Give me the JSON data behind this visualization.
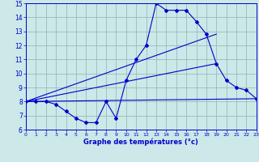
{
  "xlabel": "Graphe des températures (°c)",
  "bg_color": "#cce8e8",
  "line_color": "#0000cc",
  "grid_color": "#99bbbb",
  "xlim": [
    0,
    23
  ],
  "ylim": [
    6,
    15
  ],
  "xticks": [
    0,
    1,
    2,
    3,
    4,
    5,
    6,
    7,
    8,
    9,
    10,
    11,
    12,
    13,
    14,
    15,
    16,
    17,
    18,
    19,
    20,
    21,
    22,
    23
  ],
  "yticks": [
    6,
    7,
    8,
    9,
    10,
    11,
    12,
    13,
    14,
    15
  ],
  "curve1_x": [
    0,
    1,
    2,
    3,
    4,
    5,
    6,
    7,
    8,
    9,
    10,
    11,
    12,
    13,
    14,
    15,
    16,
    17,
    18,
    19,
    20,
    21,
    22,
    23
  ],
  "curve1_y": [
    8.0,
    8.0,
    8.0,
    7.8,
    7.3,
    6.8,
    6.5,
    6.5,
    8.0,
    6.8,
    9.5,
    11.0,
    12.0,
    15.0,
    14.5,
    14.5,
    14.5,
    13.7,
    12.8,
    10.7,
    9.5,
    9.0,
    8.8,
    8.2
  ],
  "line1_x": [
    0,
    23
  ],
  "line1_y": [
    8.0,
    8.2
  ],
  "line2_x": [
    0,
    19
  ],
  "line2_y": [
    8.0,
    12.8
  ],
  "line3_x": [
    0,
    19
  ],
  "line3_y": [
    8.0,
    10.7
  ]
}
